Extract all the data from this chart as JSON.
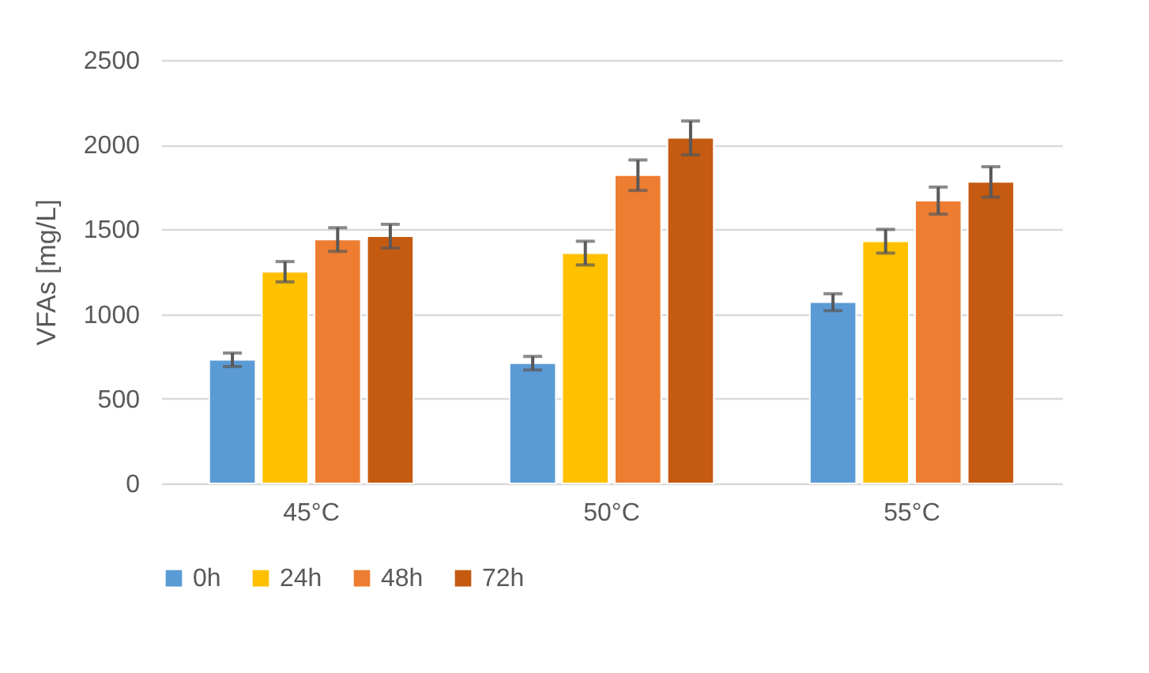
{
  "chart_data": {
    "type": "bar",
    "ylabel": "VFAs [mg/L]",
    "categories": [
      "45°C",
      "50°C",
      "55°C"
    ],
    "series": [
      {
        "name": "0h",
        "color": "#5b9bd5",
        "values": [
          730,
          710,
          1070
        ],
        "errors": [
          40,
          40,
          50
        ]
      },
      {
        "name": "24h",
        "color": "#ffc000",
        "values": [
          1250,
          1360,
          1430
        ],
        "errors": [
          60,
          70,
          70
        ]
      },
      {
        "name": "48h",
        "color": "#ed7d31",
        "values": [
          1440,
          1820,
          1670
        ],
        "errors": [
          70,
          90,
          80
        ]
      },
      {
        "name": "72h",
        "color": "#c55a11",
        "values": [
          1460,
          2040,
          1780
        ],
        "errors": [
          70,
          100,
          90
        ]
      }
    ],
    "ylim": [
      0,
      2500
    ],
    "yticks": [
      0,
      500,
      1000,
      1500,
      2000,
      2500
    ],
    "grid": "y",
    "legend": "bottom"
  }
}
